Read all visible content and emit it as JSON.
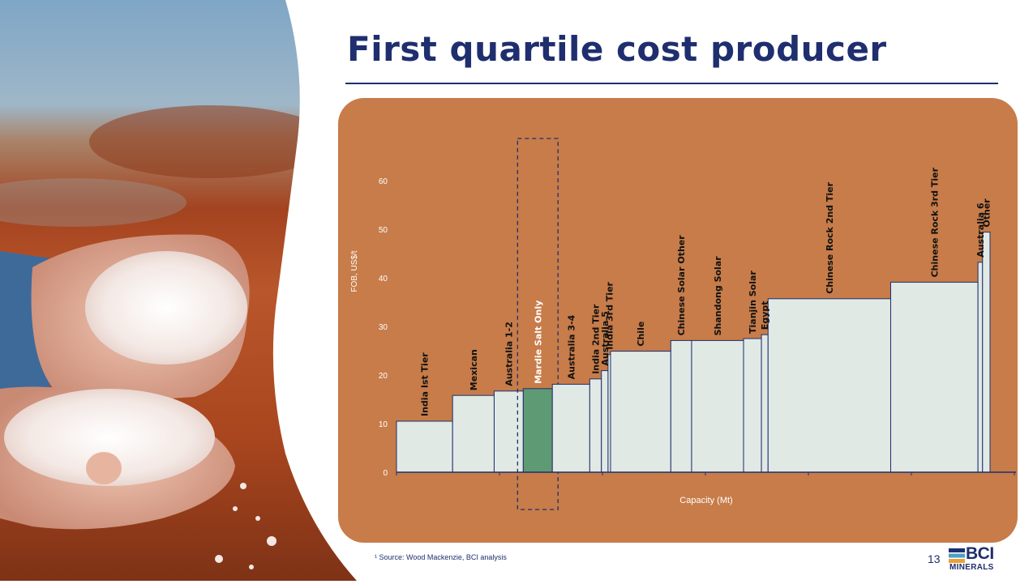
{
  "header": {
    "title": "First quartile cost producer"
  },
  "chart_data": {
    "type": "bar",
    "subtype": "cost-curve",
    "xlabel": "Capacity (Mt)",
    "ylabel": "FOB, US$/t",
    "ylim": [
      0,
      60
    ],
    "yticks": [
      0,
      10,
      20,
      30,
      40,
      50,
      60
    ],
    "grid": false,
    "legend": "none",
    "colors": {
      "bar": "#e0e9e4",
      "highlight": "#5e9a74",
      "stroke": "#1f2e6e",
      "text": "#ffffff",
      "label": "#111111"
    },
    "highlighted_category": "Mardie Salt Only",
    "categories": [
      "India Ist Tier",
      "Mexican",
      "Australia 1-2",
      "Mardie Salt Only",
      "Australia 3-4",
      "India 2nd Tier",
      "Australia 5",
      "India 3rd Tier",
      "Chile",
      "Chinese Solar Other",
      "Shandong Solar",
      "Tianjin Solar",
      "Egypt",
      "Chinese Rock 2nd Tier",
      "Chinese Rock 3rd Tier",
      "Australia 6",
      "Other"
    ],
    "capacity_mt": [
      13.5,
      10,
      7,
      7,
      9,
      2.8,
      1.6,
      0.6,
      14.5,
      5,
      12.5,
      4.3,
      1.6,
      29.5,
      21,
      1.1,
      1.8
    ],
    "values": [
      10.5,
      15.8,
      16.7,
      17.2,
      18.1,
      19.2,
      20.9,
      24.2,
      24.9,
      27.1,
      27.1,
      27.5,
      28.3,
      35.7,
      39.1,
      43.2,
      49.4
    ]
  },
  "footer": {
    "source": "¹ Source: Wood Mackenzie, BCI analysis",
    "page_number": "13",
    "logo_top": "BCI",
    "logo_bottom": "MINERALS"
  }
}
